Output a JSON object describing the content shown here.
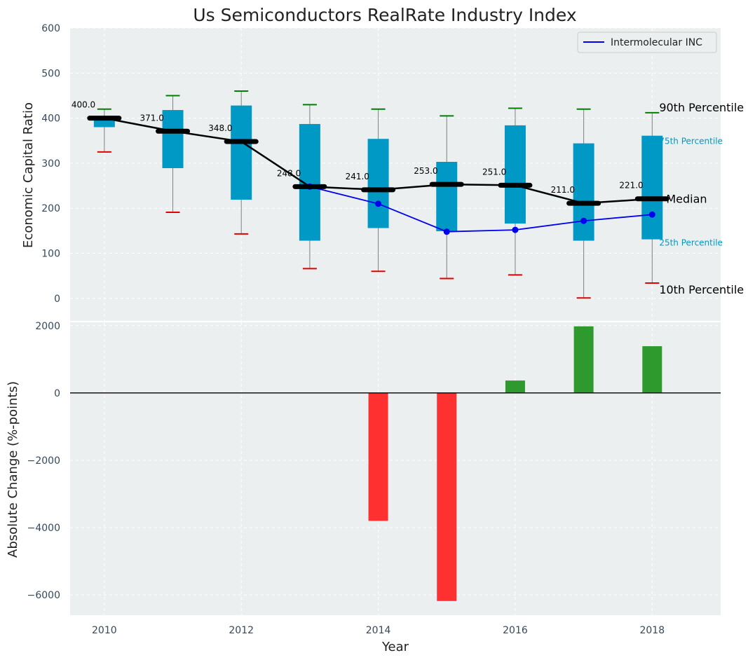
{
  "chart_data": {
    "title": "Us Semiconductors RealRate Industry Index",
    "xlabel": "Year",
    "colors": {
      "box": "#0099c6",
      "median": "#000000",
      "whisker_high": "#008000",
      "whisker_low": "#e00000",
      "company_line": "#0000ee",
      "positive_bar": "#2e9a2e",
      "negative_bar": "#ff3030",
      "background": "#ebeff0"
    },
    "top": {
      "type": "box-percentile",
      "ylabel": "Economic Capital Ratio",
      "ylim": [
        -50,
        600
      ],
      "yticks": [
        0,
        100,
        200,
        300,
        400,
        500,
        600
      ],
      "years": [
        2010,
        2011,
        2012,
        2013,
        2014,
        2015,
        2016,
        2017,
        2018
      ],
      "p90": [
        420,
        450,
        460,
        430,
        420,
        405,
        422,
        420,
        412
      ],
      "p75": [
        400,
        418,
        428,
        387,
        354,
        303,
        384,
        344,
        361
      ],
      "median": [
        400,
        371,
        348,
        248,
        241,
        253,
        251,
        211,
        221
      ],
      "median_labels": [
        "400.0",
        "371.0",
        "348.0",
        "248.0",
        "241.0",
        "253.0",
        "251.0",
        "211.0",
        "221.0"
      ],
      "p25": [
        380,
        289,
        219,
        128,
        156,
        149,
        166,
        128,
        131
      ],
      "p10": [
        325,
        191,
        143,
        66,
        60,
        44,
        52,
        1,
        34
      ],
      "company": {
        "name": "Intermolecular INC",
        "years": [
          2013,
          2014,
          2015,
          2016,
          2017,
          2018
        ],
        "values": [
          248,
          210,
          148,
          152,
          172,
          186
        ]
      },
      "percentile_labels": {
        "p90": "90th Percentile",
        "p75": "75th Percentile",
        "median": "Median",
        "p25": "25th Percentile",
        "p10": "10th Percentile"
      },
      "legend_position": "top-right"
    },
    "bottom": {
      "type": "bar",
      "ylabel": "Absolute Change (%-points)",
      "ylim": [
        -6600,
        2100
      ],
      "yticks": [
        -6000,
        -4000,
        -2000,
        0,
        2000
      ],
      "ytick_labels": [
        "−6000",
        "−4000",
        "−2000",
        "0",
        "2000"
      ],
      "years": [
        2014,
        2015,
        2016,
        2017,
        2018
      ],
      "values": [
        -3800,
        -6180,
        370,
        1980,
        1390
      ]
    },
    "xlim": [
      2009.5,
      2019.0
    ],
    "xticks": [
      2010,
      2012,
      2014,
      2016,
      2018
    ]
  }
}
